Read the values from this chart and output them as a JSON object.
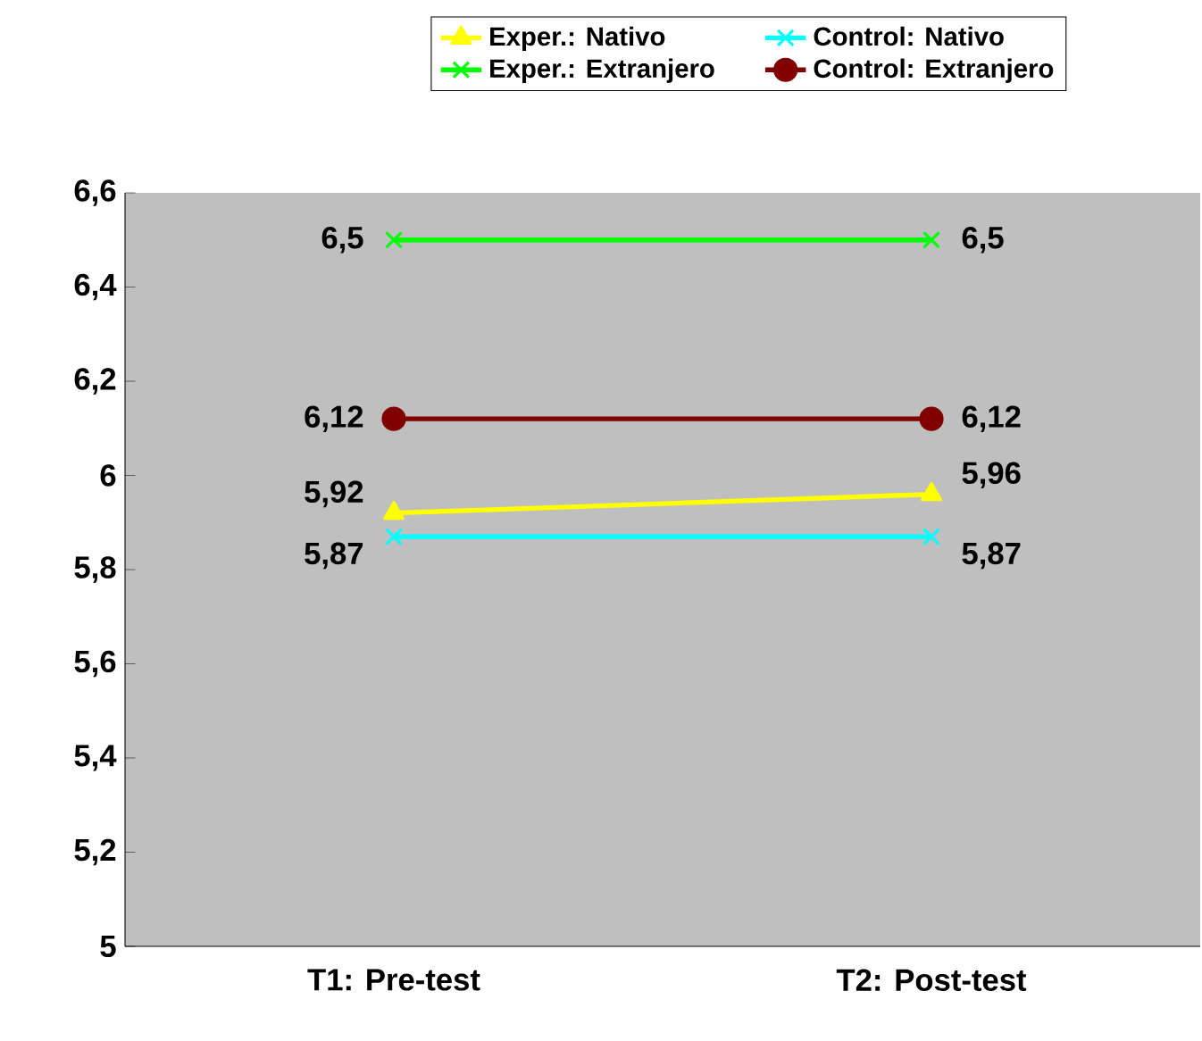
{
  "chart_data": {
    "type": "line",
    "categories": [
      "T1: Pre-test",
      "T2: Post-test"
    ],
    "series": [
      {
        "name": "Exper.: Nativo",
        "color": "#ffff00",
        "marker": "triangle",
        "values": [
          5.92,
          5.96
        ],
        "value_labels": [
          "5,92",
          "5,96"
        ]
      },
      {
        "name": "Control: Nativo",
        "color": "#00ffff",
        "marker": "cross",
        "values": [
          5.87,
          5.87
        ],
        "value_labels": [
          "5,87",
          "5,87"
        ]
      },
      {
        "name": "Exper.: Extranjero",
        "color": "#00ff00",
        "marker": "cross",
        "values": [
          6.5,
          6.5
        ],
        "value_labels": [
          "6,5",
          "6,5"
        ]
      },
      {
        "name": "Control: Extranjero",
        "color": "#800000",
        "marker": "circle",
        "values": [
          6.12,
          6.12
        ],
        "value_labels": [
          "6,12",
          "6,12"
        ]
      }
    ],
    "ylim": [
      5,
      6.6
    ],
    "yticks": [
      5,
      {
        "value": 5.2,
        "label": "5,2"
      },
      {
        "value": 5.4,
        "label": "5,4"
      },
      {
        "value": 5.6,
        "label": "5,6"
      },
      {
        "value": 5.8,
        "label": "5,8"
      },
      6,
      {
        "value": 6.2,
        "label": "6,2"
      },
      {
        "value": 6.4,
        "label": "6,4"
      },
      {
        "value": 6.6,
        "label": "6,6"
      }
    ],
    "grid": false,
    "legend": "top",
    "line_style": "solid"
  }
}
